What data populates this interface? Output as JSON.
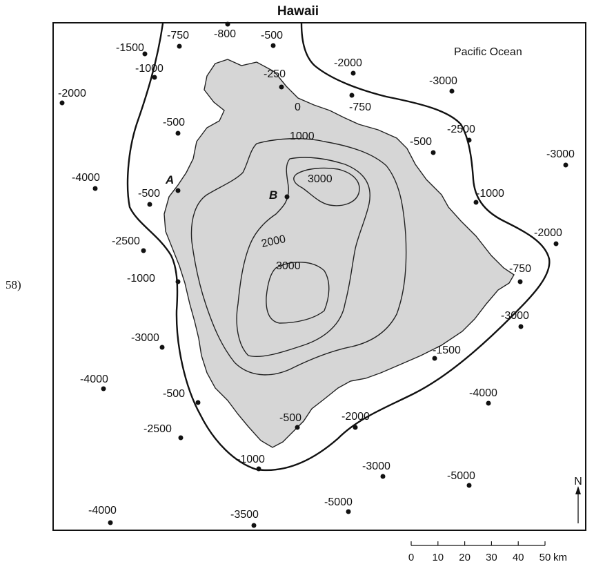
{
  "title": "Hawaii",
  "question_number": "58)",
  "ocean_label": "Pacific Ocean",
  "point_labels": {
    "a": "A",
    "b": "B"
  },
  "contour_labels": {
    "c0": "0",
    "c1000": "1000",
    "c2000": "2000",
    "c3000_north": "3000",
    "c3000_south": "3000"
  },
  "elevation_points": [
    "-1500",
    "-750",
    "-800",
    "-500",
    "-1000",
    "-2000",
    "-250",
    "-2000",
    "-750",
    "-3000",
    "-500",
    "-2500",
    "-500",
    "-3000",
    "-4000",
    "-500",
    "-1000",
    "-2500",
    "-2000",
    "-1000",
    "-750",
    "-3000",
    "-3000",
    "-1500",
    "-4000",
    "-4000",
    "-500",
    "-2500",
    "-500",
    "-2000",
    "-1000",
    "-3000",
    "-5000",
    "-4000",
    "-3500",
    "-5000"
  ],
  "north_label": "N",
  "scale": {
    "ticks": [
      "0",
      "10",
      "20",
      "30",
      "40",
      "50"
    ],
    "unit": "km"
  }
}
